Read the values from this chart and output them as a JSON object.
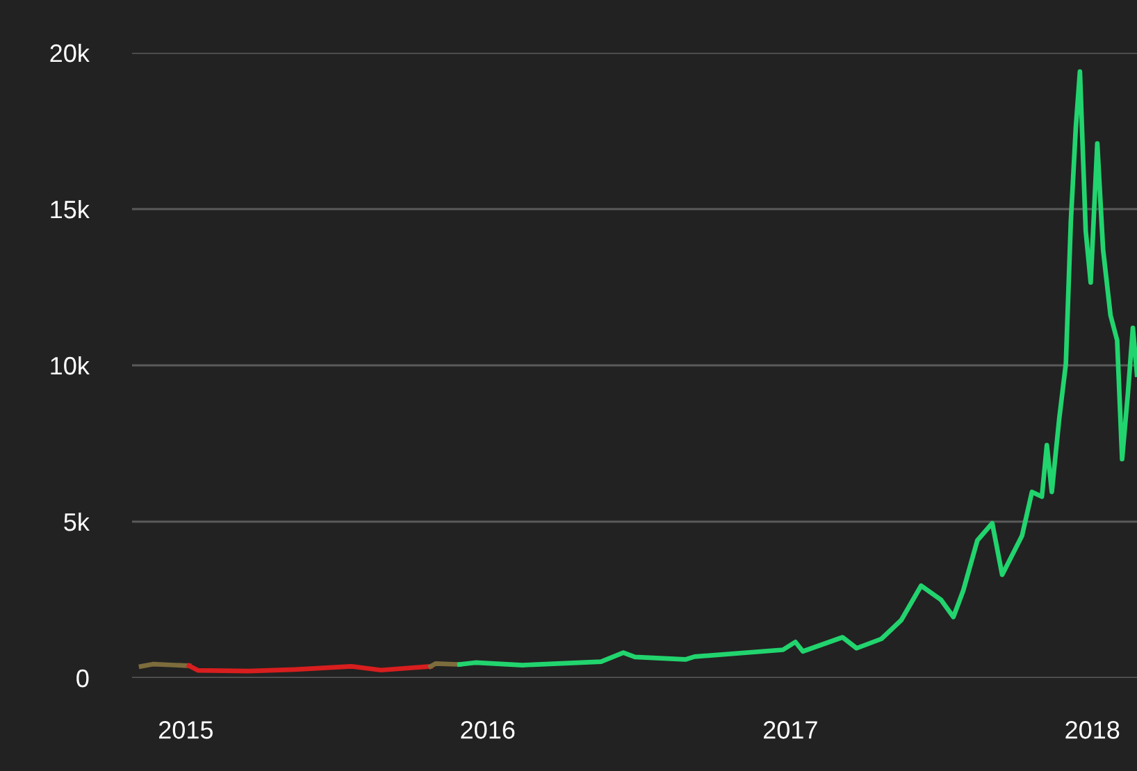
{
  "chart_data": {
    "type": "line",
    "series": [
      {
        "color": "#7d6c3c",
        "x": [
          "2014-11-08",
          "2014-11-22",
          "2015-01-05"
        ],
        "values": [
          370,
          440,
          390
        ]
      },
      {
        "color": "#d81e1e",
        "x": [
          "2015-01-05",
          "2015-01-16",
          "2015-03-18",
          "2015-05-13",
          "2015-07-20",
          "2015-08-25",
          "2015-10-24"
        ],
        "values": [
          390,
          240,
          220,
          270,
          370,
          250,
          370
        ]
      },
      {
        "color": "#7d6c3c",
        "x": [
          "2015-10-24",
          "2015-10-30",
          "2015-11-28"
        ],
        "values": [
          370,
          460,
          430
        ]
      },
      {
        "color": "#22d46e",
        "x": [
          "2015-11-28",
          "2015-12-17",
          "2016-02-12",
          "2016-05-17",
          "2016-06-13",
          "2016-06-27",
          "2016-08-27",
          "2016-09-07",
          "2016-12-23",
          "2017-01-07",
          "2017-01-16",
          "2017-03-05",
          "2017-03-22",
          "2017-04-21",
          "2017-05-15",
          "2017-06-08",
          "2017-07-02",
          "2017-07-17",
          "2017-07-29",
          "2017-08-15",
          "2017-09-02",
          "2017-09-14",
          "2017-10-08",
          "2017-10-20",
          "2017-11-01",
          "2017-11-07",
          "2017-11-13",
          "2017-11-22",
          "2017-11-30",
          "2017-12-06",
          "2017-12-12",
          "2017-12-17",
          "2017-12-24",
          "2017-12-30",
          "2018-01-07",
          "2018-01-14",
          "2018-01-23",
          "2018-01-31",
          "2018-02-06",
          "2018-02-13",
          "2018-02-19",
          "2018-02-24"
        ],
        "values": [
          430,
          490,
          410,
          520,
          810,
          670,
          590,
          680,
          900,
          1150,
          850,
          1300,
          950,
          1250,
          1850,
          2950,
          2500,
          1950,
          2800,
          4400,
          4950,
          3300,
          4550,
          5950,
          5800,
          7450,
          5950,
          8300,
          10050,
          14600,
          17600,
          19400,
          14300,
          12650,
          17100,
          13700,
          11600,
          10800,
          7000,
          9100,
          11200,
          9700
        ]
      }
    ],
    "xlim": [
      "2014-10-28",
      "2018-02-24"
    ],
    "xticks": [
      {
        "value": "2015-01-01",
        "label": "2015"
      },
      {
        "value": "2016-01-01",
        "label": "2016"
      },
      {
        "value": "2017-01-01",
        "label": "2017"
      },
      {
        "value": "2018-01-01",
        "label": "2018"
      }
    ],
    "ylim": [
      0,
      20000
    ],
    "yticks": [
      {
        "value": 0,
        "label": "0"
      },
      {
        "value": 5000,
        "label": "5k"
      },
      {
        "value": 10000,
        "label": "10k"
      },
      {
        "value": 15000,
        "label": "15k"
      },
      {
        "value": 20000,
        "label": "20k"
      }
    ],
    "grid": "y",
    "legend": false,
    "marker": "none",
    "line_style": "solid"
  }
}
